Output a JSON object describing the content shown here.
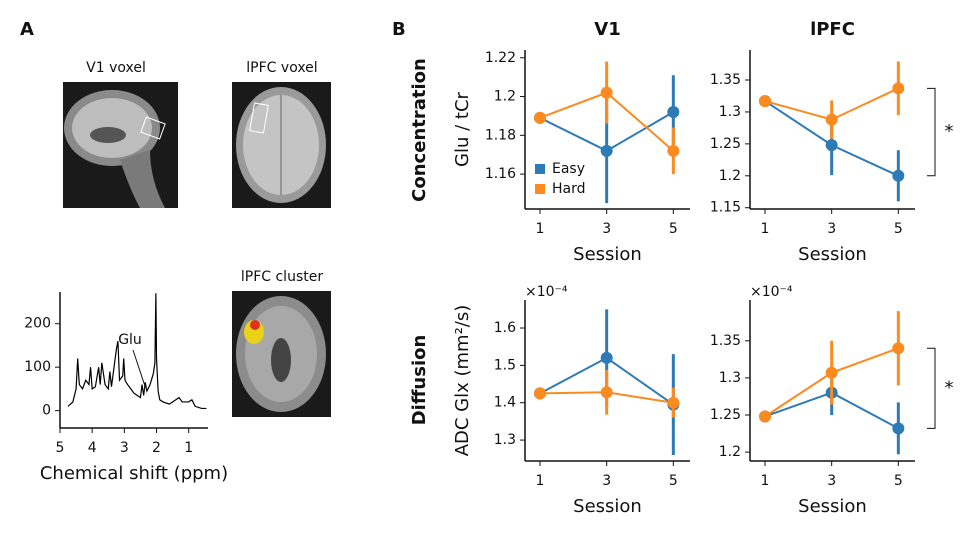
{
  "panel_labels": [
    "A",
    "B"
  ],
  "images": [
    {
      "title": "V1 voxel"
    },
    {
      "title": "lPFC voxel"
    },
    {
      "title": "lPFC cluster"
    }
  ],
  "row_titles": [
    "Concentration",
    "Diffusion"
  ],
  "chart_data": [
    {
      "type": "line",
      "xlabel": "Chemical shift (ppm)",
      "annotation": "Glu",
      "color": "#000000",
      "x": [
        4.75,
        4.6,
        4.5,
        4.45,
        4.4,
        4.3,
        4.2,
        4.1,
        4.05,
        4.0,
        3.9,
        3.8,
        3.75,
        3.7,
        3.6,
        3.5,
        3.45,
        3.4,
        3.25,
        3.2,
        3.15,
        3.05,
        3.02,
        2.98,
        2.9,
        2.8,
        2.7,
        2.6,
        2.5,
        2.45,
        2.4,
        2.35,
        2.3,
        2.2,
        2.1,
        2.05,
        2.02,
        2.0,
        1.95,
        1.9,
        1.8,
        1.6,
        1.4,
        1.3,
        1.2,
        1.0,
        0.9,
        0.8,
        0.6,
        0.45
      ],
      "values": [
        10,
        20,
        50,
        120,
        60,
        50,
        70,
        60,
        100,
        50,
        55,
        100,
        60,
        110,
        60,
        50,
        90,
        55,
        140,
        160,
        70,
        80,
        120,
        70,
        60,
        50,
        40,
        35,
        30,
        60,
        35,
        65,
        45,
        60,
        85,
        110,
        270,
        120,
        45,
        25,
        20,
        15,
        25,
        30,
        20,
        20,
        25,
        10,
        5,
        5
      ],
      "xlim": [
        5,
        0.4
      ],
      "xticks": [
        5,
        4,
        3,
        2,
        1
      ],
      "ylim": [
        -40,
        273
      ],
      "yticks": [
        0,
        100,
        200
      ]
    },
    {
      "type": "line",
      "title": "V1",
      "xlabel": "Session",
      "ylabel": "Glu / tCr",
      "legend": true,
      "x": [
        1,
        3,
        5
      ],
      "xlim": [
        0.55,
        5.5
      ],
      "xticks": [
        1,
        3,
        5
      ],
      "ylim": [
        1.142,
        1.224
      ],
      "yticks": [
        1.16,
        1.18,
        1.2,
        1.22
      ],
      "series": [
        {
          "name": "Easy",
          "color": "#2d7bb6",
          "values": [
            1.189,
            1.172,
            1.192
          ],
          "errors": [
            0,
            0.027,
            0.019
          ]
        },
        {
          "name": "Hard",
          "color": "#fb8a1f",
          "values": [
            1.189,
            1.202,
            1.172
          ],
          "errors": [
            0,
            0.016,
            0.012
          ]
        }
      ]
    },
    {
      "type": "line",
      "title": "lPFC",
      "xlabel": "Session",
      "annotation": "*",
      "x": [
        1,
        3,
        5
      ],
      "xlim": [
        0.55,
        5.5
      ],
      "xticks": [
        1,
        3,
        5
      ],
      "ylim": [
        1.148,
        1.397
      ],
      "yticks": [
        1.15,
        1.2,
        1.25,
        1.3,
        1.35
      ],
      "series": [
        {
          "color": "#2d7bb6",
          "values": [
            1.317,
            1.248,
            1.2
          ],
          "errors": [
            0,
            0.047,
            0.04
          ]
        },
        {
          "color": "#fb8a1f",
          "values": [
            1.317,
            1.288,
            1.337
          ],
          "errors": [
            0,
            0.03,
            0.042
          ]
        }
      ]
    },
    {
      "type": "line",
      "xlabel": "Session",
      "ylabel": "ADC Glx (mm²/s)",
      "y_multiplier": "×10⁻⁴",
      "x": [
        1,
        3,
        5
      ],
      "xlim": [
        0.55,
        5.5
      ],
      "xticks": [
        1,
        3,
        5
      ],
      "ylim": [
        1.244,
        1.675
      ],
      "yticks": [
        1.3,
        1.4,
        1.5,
        1.6
      ],
      "series": [
        {
          "color": "#2d7bb6",
          "values": [
            1.425,
            1.52,
            1.395
          ],
          "errors": [
            0,
            0.13,
            0.135
          ]
        },
        {
          "color": "#fb8a1f",
          "values": [
            1.425,
            1.428,
            1.4
          ],
          "errors": [
            0,
            0.06,
            0.04
          ]
        }
      ]
    },
    {
      "type": "line",
      "xlabel": "Session",
      "y_multiplier": "×10⁻⁴",
      "annotation": "*",
      "x": [
        1,
        3,
        5
      ],
      "xlim": [
        0.55,
        5.5
      ],
      "xticks": [
        1,
        3,
        5
      ],
      "ylim": [
        1.188,
        1.405
      ],
      "yticks": [
        1.2,
        1.25,
        1.3,
        1.35
      ],
      "series": [
        {
          "color": "#2d7bb6",
          "values": [
            1.248,
            1.28,
            1.232
          ],
          "errors": [
            0,
            0.03,
            0.035
          ]
        },
        {
          "color": "#fb8a1f",
          "values": [
            1.248,
            1.307,
            1.34
          ],
          "errors": [
            0,
            0.043,
            0.05
          ]
        }
      ]
    }
  ]
}
